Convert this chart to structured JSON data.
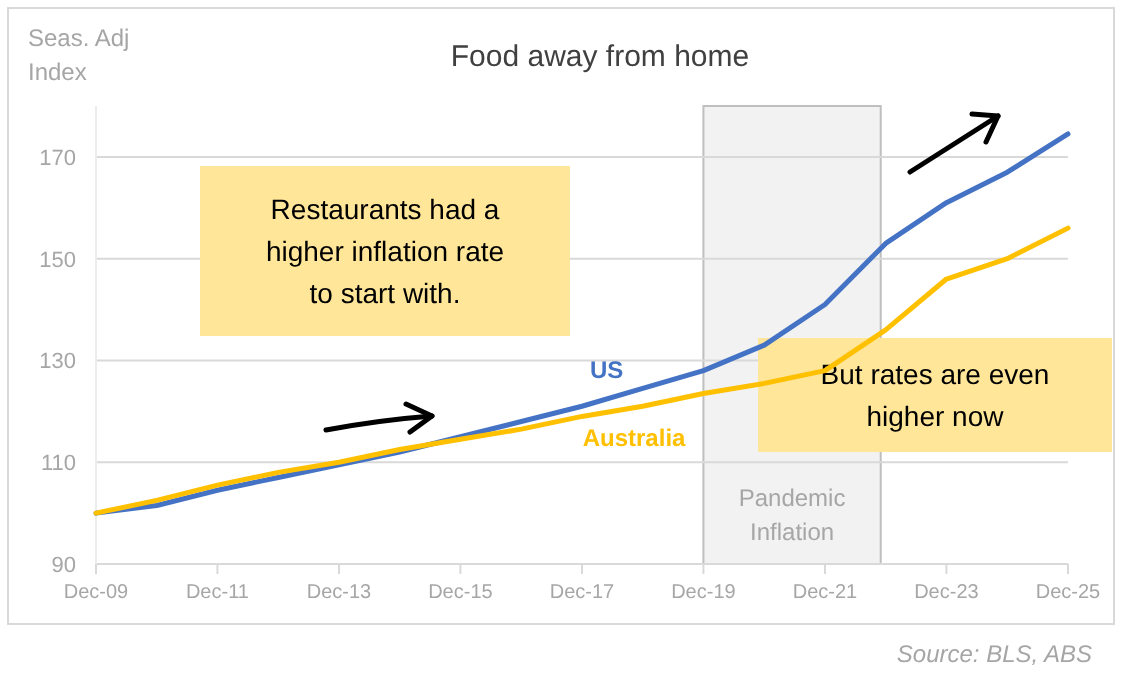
{
  "chart_data": {
    "type": "line",
    "title": "Food away from home",
    "ylabel": "Seas. Adj Index",
    "x": [
      "2009-12",
      "2010-12",
      "2011-12",
      "2012-12",
      "2013-12",
      "2014-12",
      "2015-12",
      "2016-12",
      "2017-12",
      "2018-12",
      "2019-12",
      "2020-12",
      "2021-12",
      "2022-12",
      "2023-12",
      "2024-12",
      "2025-12"
    ],
    "series": [
      {
        "name": "US",
        "color": "#4472c4",
        "values": [
          100,
          101.5,
          104.5,
          107,
          109.5,
          112,
          115,
          118,
          121,
          124.5,
          128,
          133,
          141,
          153,
          161,
          167,
          174.5
        ]
      },
      {
        "name": "Australia",
        "color": "#ffc000",
        "values": [
          100,
          102.5,
          105.5,
          108,
          110,
          112.5,
          114.5,
          116.5,
          119,
          121,
          123.5,
          125.5,
          128,
          136,
          146,
          150,
          156
        ]
      }
    ],
    "xlim": [
      "2009-12",
      "2025-12"
    ],
    "xticks": [
      {
        "value": "2009-12",
        "label": "Dec-09"
      },
      {
        "value": "2011-12",
        "label": "Dec-11"
      },
      {
        "value": "2013-12",
        "label": "Dec-13"
      },
      {
        "value": "2015-12",
        "label": "Dec-15"
      },
      {
        "value": "2017-12",
        "label": "Dec-17"
      },
      {
        "value": "2019-12",
        "label": "Dec-19"
      },
      {
        "value": "2021-12",
        "label": "Dec-21"
      },
      {
        "value": "2023-12",
        "label": "Dec-23"
      },
      {
        "value": "2025-12",
        "label": "Dec-25"
      }
    ],
    "ylim": [
      90,
      180
    ],
    "yticks": [
      90,
      110,
      130,
      150,
      170
    ],
    "grid": "y",
    "line_style": "solid",
    "marker": "none",
    "bands": [
      {
        "axis": "x",
        "from": "2019-12",
        "to": "2022-11",
        "label": "Pandemic Inflation",
        "color": "#f2f2f2"
      }
    ],
    "annotations": [
      "Restaurants had a higher inflation rate to start with.",
      "But rates are even higher now",
      "Source: BLS, ABS"
    ]
  }
}
